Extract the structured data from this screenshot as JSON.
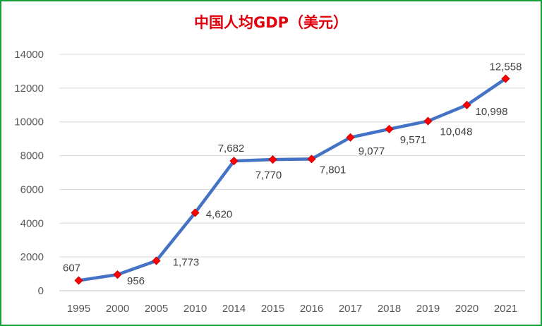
{
  "chart_data": {
    "type": "line",
    "title": "中国人均GDP（美元）",
    "xlabel": "",
    "ylabel": "",
    "categories": [
      "1995",
      "2000",
      "2005",
      "2010",
      "2014",
      "2015",
      "2016",
      "2017",
      "2018",
      "2019",
      "2020",
      "2021"
    ],
    "series": [
      {
        "values": [
          607,
          956,
          1773,
          4620,
          7682,
          7770,
          7801,
          9077,
          9571,
          10048,
          10998,
          12558
        ],
        "data_labels": [
          "607",
          "956",
          "1,773",
          "4,620",
          "7,682",
          "7,770",
          "7,801",
          "9,077",
          "9,571",
          "10,048",
          "10,998",
          "12,558"
        ],
        "line_color": "#4472c4",
        "marker_color": "#ff0000",
        "marker": "diamond"
      }
    ],
    "ylim": [
      0,
      14000
    ],
    "yticks": [
      0,
      2000,
      4000,
      6000,
      8000,
      10000,
      12000,
      14000
    ],
    "grid": true,
    "legend": "none",
    "frame_color": "#1a9e3c",
    "title_color": "#e0000b"
  }
}
